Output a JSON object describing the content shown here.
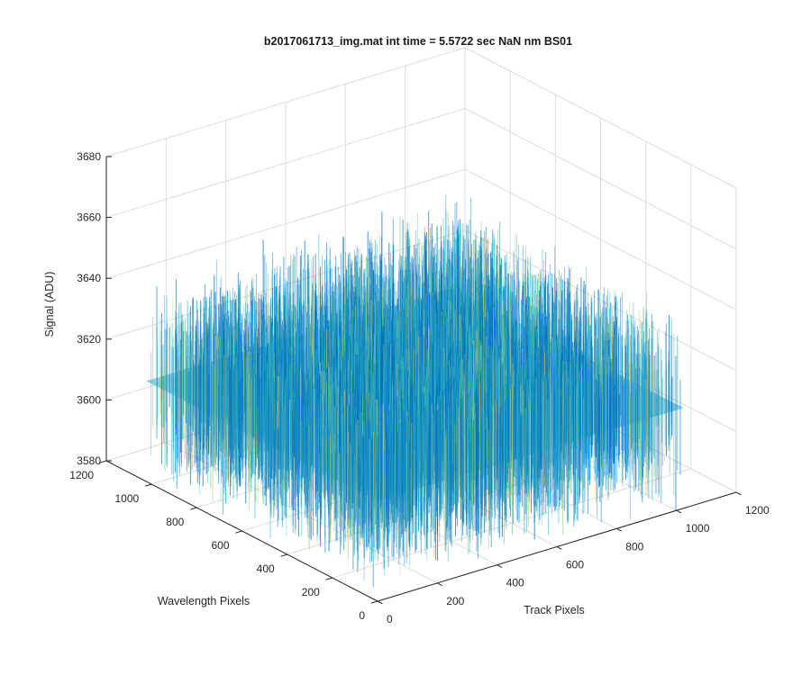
{
  "chart_data": {
    "type": "surface",
    "title": "b2017061713_img.mat int time = 5.5722 sec  NaN nm BS01",
    "xlabel": "Track Pixels",
    "ylabel": "Wavelength Pixels",
    "zlabel": "Signal (ADU)",
    "xlim": [
      0,
      1200
    ],
    "ylim": [
      0,
      1200
    ],
    "zlim": [
      3580,
      3680
    ],
    "x_ticks": [
      "0",
      "200",
      "400",
      "600",
      "800",
      "1000",
      "1200"
    ],
    "y_ticks": [
      "0",
      "200",
      "400",
      "600",
      "800",
      "1000",
      "1200"
    ],
    "z_ticks": [
      "3580",
      "3600",
      "3620",
      "3640",
      "3660",
      "3680"
    ],
    "grid": true,
    "colormap": "parula",
    "colors": [
      "#0072bd",
      "#1a8fd6",
      "#1fb3c8",
      "#3cc1a2",
      "#8cc67a",
      "#c9c063"
    ],
    "surface": {
      "x_range": [
        0,
        1024
      ],
      "y_range": [
        0,
        1024
      ],
      "signal_mean": 3613,
      "signal_spread": 14
    }
  }
}
